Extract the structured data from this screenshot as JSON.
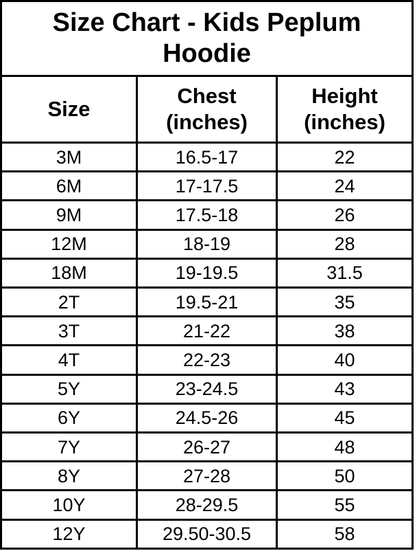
{
  "colors": {
    "background": "#ffffff",
    "text": "#000000",
    "border": "#000000"
  },
  "chart_data": {
    "type": "table",
    "title": "Size Chart - Kids Peplum Hoodie",
    "columns": [
      "Size",
      "Chest (inches)",
      "Height (inches)"
    ],
    "rows": [
      [
        "3M",
        "16.5-17",
        "22"
      ],
      [
        "6M",
        "17-17.5",
        "24"
      ],
      [
        "9M",
        "17.5-18",
        "26"
      ],
      [
        "12M",
        "18-19",
        "28"
      ],
      [
        "18M",
        "19-19.5",
        "31.5"
      ],
      [
        "2T",
        "19.5-21",
        "35"
      ],
      [
        "3T",
        "21-22",
        "38"
      ],
      [
        "4T",
        "22-23",
        "40"
      ],
      [
        "5Y",
        "23-24.5",
        "43"
      ],
      [
        "6Y",
        "24.5-26",
        "45"
      ],
      [
        "7Y",
        "26-27",
        "48"
      ],
      [
        "8Y",
        "27-28",
        "50"
      ],
      [
        "10Y",
        "28-29.5",
        "55"
      ],
      [
        "12Y",
        "29.50-30.5",
        "58"
      ]
    ]
  }
}
